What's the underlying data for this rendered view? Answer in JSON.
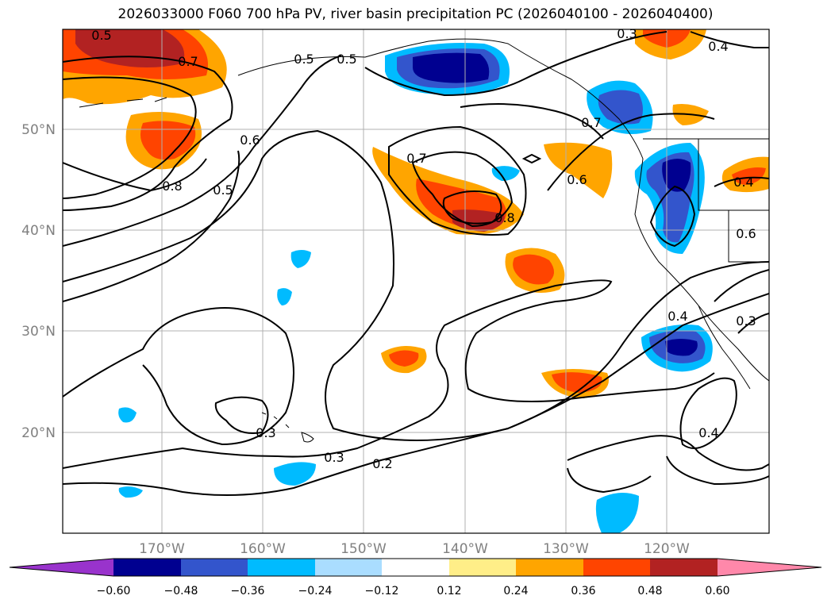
{
  "title": "2026033000 F060 700 hPa PV, river basin precipitation PC (2026040100 - 2026040400)",
  "colors": {
    "neg_extend": "#9933cc",
    "bins": [
      "#000090",
      "#3355cc",
      "#00bbff",
      "#aaddff",
      "#ffffff",
      "#ffee88",
      "#ffa500",
      "#ff4400",
      "#b22222"
    ],
    "pos_extend": "#ff88aa",
    "gridline": "#b0b0b0",
    "contour": "#000000"
  },
  "latitude_labels": [
    "50°N",
    "40°N",
    "30°N",
    "20°N"
  ],
  "longitude_labels": [
    "170°W",
    "160°W",
    "150°W",
    "140°W",
    "130°W",
    "120°W"
  ],
  "colorbar": {
    "ticks": [
      "−0.60",
      "−0.48",
      "−0.36",
      "−0.24",
      "−0.12",
      "0.12",
      "0.24",
      "0.36",
      "0.48",
      "0.60"
    ]
  },
  "contour_labels": [
    "0.5",
    "0.7",
    "0.5",
    "0.5",
    "0.3",
    "0.4",
    "0.6",
    "0.8",
    "0.5",
    "0.7",
    "0.8",
    "0.6",
    "0.7",
    "0.4",
    "0.6",
    "0.4",
    "0.3",
    "0.3",
    "0.3",
    "0.2",
    "0.4"
  ]
}
